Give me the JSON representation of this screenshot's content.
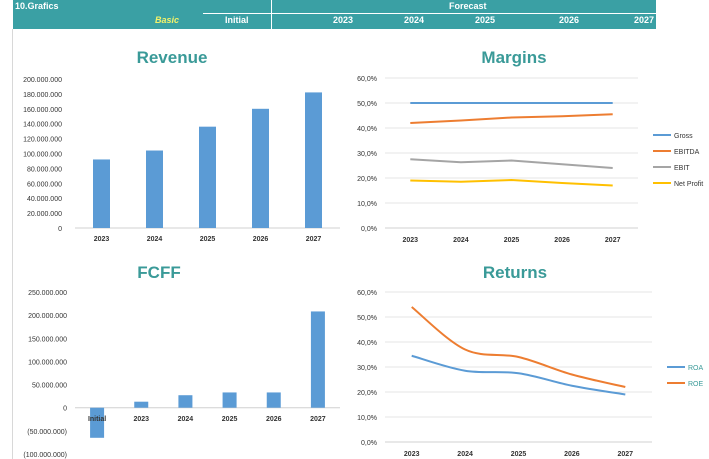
{
  "header": {
    "sheet_title": "10.Grafics",
    "scenario": "Basic",
    "initial_label": "Initial",
    "forecast_label": "Forecast",
    "years": [
      "2023",
      "2024",
      "2025",
      "2026",
      "2027"
    ]
  },
  "colors": {
    "header_bg": "#3aa0a4",
    "title_teal": "#3a9a98",
    "bar_blue": "#5b9bd5",
    "gross": "#5b9bd5",
    "ebitda": "#ed7d31",
    "ebit": "#a5a5a5",
    "net_profit": "#ffc000"
  },
  "chart_data": [
    {
      "type": "bar",
      "title": "Revenue",
      "categories": [
        "2023",
        "2024",
        "2025",
        "2026",
        "2027"
      ],
      "values": [
        92000000,
        104000000,
        136000000,
        160000000,
        182000000
      ],
      "ylim": [
        0,
        200000000
      ],
      "yticks": [
        "0",
        "20.000.000",
        "40.000.000",
        "60.000.000",
        "80.000.000",
        "100.000.000",
        "120.000.000",
        "140.000.000",
        "160.000.000",
        "180.000.000",
        "200.000.000"
      ],
      "grid": false
    },
    {
      "type": "line",
      "title": "Margins",
      "categories": [
        "2023",
        "2024",
        "2025",
        "2026",
        "2027"
      ],
      "series": [
        {
          "name": "Gross",
          "values": [
            50.0,
            50.0,
            50.0,
            50.0,
            50.0
          ]
        },
        {
          "name": "EBITDA",
          "values": [
            42.0,
            43.0,
            44.2,
            44.7,
            45.5
          ]
        },
        {
          "name": "EBIT",
          "values": [
            27.5,
            26.3,
            27.0,
            25.5,
            24.0
          ]
        },
        {
          "name": "Net Profit",
          "values": [
            19.0,
            18.5,
            19.2,
            18.0,
            17.0
          ]
        }
      ],
      "ylim": [
        0,
        60
      ],
      "yticks": [
        "0,0%",
        "10,0%",
        "20,0%",
        "30,0%",
        "40,0%",
        "50,0%",
        "60,0%"
      ],
      "legend": "right",
      "grid": true
    },
    {
      "type": "bar",
      "title": "FCFF",
      "categories": [
        "Initial",
        "2023",
        "2024",
        "2025",
        "2026",
        "2027"
      ],
      "values": [
        -65000000,
        13000000,
        27000000,
        33000000,
        33000000,
        208000000
      ],
      "ylim": [
        -100000000,
        250000000
      ],
      "yticks": [
        "(100.000.000)",
        "(50.000.000)",
        "0",
        "50.000.000",
        "100.000.000",
        "150.000.000",
        "200.000.000",
        "250.000.000"
      ],
      "grid": false
    },
    {
      "type": "line",
      "title": "Returns",
      "categories": [
        "2023",
        "2024",
        "2025",
        "2026",
        "2027"
      ],
      "series": [
        {
          "name": "ROA",
          "values": [
            34.5,
            28.5,
            27.5,
            22.5,
            19.0
          ]
        },
        {
          "name": "ROE",
          "values": [
            54.0,
            37.0,
            34.0,
            27.0,
            22.0
          ]
        }
      ],
      "ylim": [
        0,
        60
      ],
      "yticks": [
        "0,0%",
        "10,0%",
        "20,0%",
        "30,0%",
        "40,0%",
        "50,0%",
        "60,0%"
      ],
      "legend": "right",
      "grid": true
    }
  ]
}
